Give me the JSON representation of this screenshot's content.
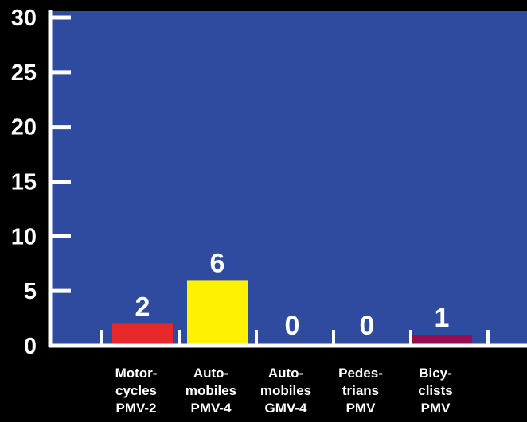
{
  "chart_data": {
    "type": "bar",
    "categories": [
      [
        "Motor-",
        "cycles",
        "PMV-2"
      ],
      [
        "Auto-",
        "mobiles",
        "PMV-4"
      ],
      [
        "Auto-",
        "mobiles",
        "GMV-4"
      ],
      [
        "Pedes-",
        "trians",
        "PMV"
      ],
      [
        "Bicy-",
        "clists",
        "PMV"
      ]
    ],
    "values": [
      2,
      6,
      0,
      0,
      1
    ],
    "data_labels": [
      "2",
      "6",
      "0",
      "0",
      "1"
    ],
    "bar_colors": [
      "#e8282b",
      "#fff200",
      "#2f4ba0",
      "#2f4ba0",
      "#9b0b52"
    ],
    "yticks": [
      "0",
      "5",
      "10",
      "15",
      "20",
      "25",
      "30"
    ],
    "ylim": [
      0,
      30
    ],
    "title": "",
    "xlabel": "",
    "ylabel": "",
    "grid": false,
    "legend": "none",
    "plot_background": "#2f4ba0",
    "axis_color": "#ffffff"
  }
}
